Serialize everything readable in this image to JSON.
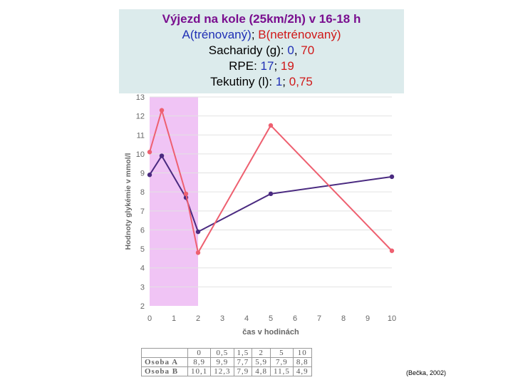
{
  "header": {
    "title": "Výjezd na kole (25km/2h) v 16-18 h",
    "line2": {
      "a": "A(trénovaný)",
      "sep": "; ",
      "b": "B(netrénovaný)"
    },
    "line3": {
      "prefix": "Sacharidy (g): ",
      "a": "0",
      "sep": ", ",
      "b": "70"
    },
    "line4": {
      "prefix": "RPE: ",
      "a": "17",
      "sep": "; ",
      "b": "19"
    },
    "line5": {
      "prefix": "Tekutiny (l): ",
      "a": "1",
      "sep": "; ",
      "b": "0,75"
    }
  },
  "chart_data": {
    "type": "line",
    "xlabel": "čas v hodinách",
    "ylabel": "Hodnoty glykémie v mmol/l",
    "xlim": [
      0,
      10
    ],
    "ylim": [
      2,
      13
    ],
    "xticks": [
      0,
      1,
      2,
      3,
      4,
      5,
      6,
      7,
      8,
      9,
      10
    ],
    "yticks": [
      2,
      3,
      4,
      5,
      6,
      7,
      8,
      9,
      10,
      11,
      12,
      13
    ],
    "highlight_band": {
      "x_from": 0,
      "x_to": 2,
      "color": "#f0c4f5"
    },
    "grid": true,
    "series": [
      {
        "name": "Osoba A",
        "color": "#4a2a80",
        "x": [
          0,
          0.5,
          1.5,
          2,
          5,
          10
        ],
        "y": [
          8.9,
          9.9,
          7.7,
          5.9,
          7.9,
          8.8
        ]
      },
      {
        "name": "Osoba B",
        "color": "#ee6070",
        "x": [
          0,
          0.5,
          1.5,
          2,
          5,
          10
        ],
        "y": [
          10.1,
          12.3,
          7.9,
          4.8,
          11.5,
          4.9
        ]
      }
    ]
  },
  "table": {
    "header": [
      "",
      "0",
      "0,5",
      "1,5",
      "2",
      "5",
      "10"
    ],
    "rows": [
      {
        "label": "Osoba A",
        "values": [
          "8,9",
          "9,9",
          "7,7",
          "5,9",
          "7,9",
          "8,8"
        ]
      },
      {
        "label": "Osoba B",
        "values": [
          "10,1",
          "12,3",
          "7,9",
          "4,8",
          "11,5",
          "4,9"
        ]
      }
    ]
  },
  "source": "(Bečka, 2002)"
}
